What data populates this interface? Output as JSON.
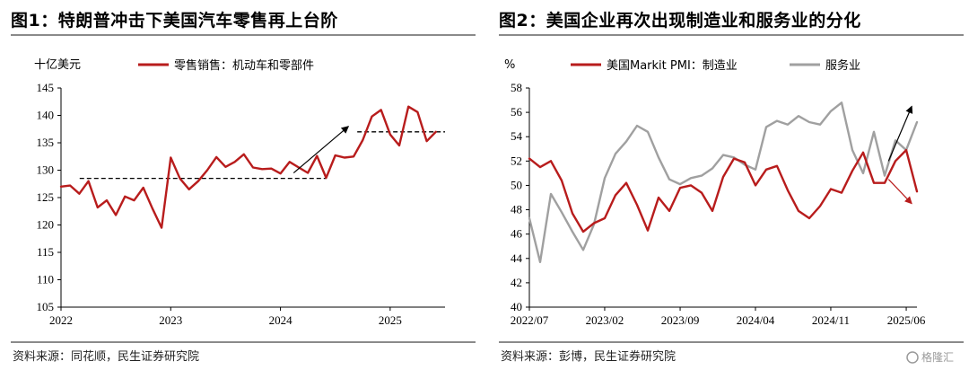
{
  "charts": [
    {
      "title": "图1：特朗普冲击下美国汽车零售再上台阶",
      "source": "资料来源：同花顺，民生证券研究院"
    },
    {
      "title": "图2：美国企业再次出现制造业和服务业的分化",
      "source": "资料来源：彭博，民生证券研究院"
    }
  ],
  "watermark": "格隆汇",
  "colors": {
    "red": "#b81c1c",
    "gray": "#a0a0a0",
    "rule": "#8a8a8a"
  },
  "chart_data": [
    {
      "type": "line",
      "unit_label": "十亿美元",
      "ylim": [
        105,
        145
      ],
      "yticks": [
        105,
        110,
        115,
        120,
        125,
        130,
        135,
        140,
        145
      ],
      "xlim": [
        2022.0,
        2025.5
      ],
      "xticks": [
        {
          "value": 2022.0,
          "label": "2022"
        },
        {
          "value": 2023.0,
          "label": "2023"
        },
        {
          "value": 2024.0,
          "label": "2024"
        },
        {
          "value": 2025.0,
          "label": "2025"
        }
      ],
      "series": [
        {
          "name": "零售销售：机动车和零部件",
          "color": "#b81c1c",
          "start": 2022.0,
          "step_months": 1,
          "values": [
            127.0,
            127.2,
            125.7,
            128.0,
            123.2,
            124.5,
            121.8,
            125.2,
            124.5,
            126.8,
            123.0,
            119.5,
            132.3,
            128.5,
            126.5,
            128.0,
            130.0,
            132.4,
            130.6,
            131.5,
            132.9,
            130.5,
            130.2,
            130.3,
            129.4,
            131.5,
            130.5,
            129.5,
            132.6,
            128.6,
            132.7,
            132.3,
            132.5,
            135.5,
            139.8,
            141.0,
            136.5,
            134.5,
            141.6,
            140.6,
            135.3,
            137.0
          ]
        }
      ],
      "reference_lines": [
        {
          "x": [
            2022.17,
            2024.42
          ],
          "y": 128.5
        },
        {
          "x": [
            2024.7,
            2025.5
          ],
          "y": 137.0
        }
      ],
      "arrows": [
        {
          "from": [
            2024.12,
            129.5
          ],
          "to": [
            2024.62,
            138.0
          ],
          "color": "#000000"
        }
      ]
    },
    {
      "type": "line",
      "unit_label": "%",
      "ylim": [
        40,
        58
      ],
      "yticks": [
        40,
        42,
        44,
        46,
        48,
        50,
        52,
        54,
        56,
        58
      ],
      "xlim": [
        2022.5,
        2025.5
      ],
      "xticks": [
        {
          "value": 2022.5,
          "label": "2022/07"
        },
        {
          "value": 2023.083,
          "label": "2023/02"
        },
        {
          "value": 2023.667,
          "label": "2023/09"
        },
        {
          "value": 2024.25,
          "label": "2024/04"
        },
        {
          "value": 2024.833,
          "label": "2024/11"
        },
        {
          "value": 2025.417,
          "label": "2025/06"
        }
      ],
      "series": [
        {
          "name": "美国Markit PMI：制造业",
          "color": "#b81c1c",
          "start": 2022.5,
          "step_months": 1,
          "values": [
            52.2,
            51.5,
            52.0,
            50.4,
            47.7,
            46.2,
            46.9,
            47.3,
            49.2,
            50.2,
            48.4,
            46.3,
            49.0,
            47.9,
            49.8,
            50.0,
            49.4,
            47.9,
            50.7,
            52.2,
            51.9,
            50.0,
            51.3,
            51.6,
            49.6,
            47.9,
            47.3,
            48.3,
            49.7,
            49.4,
            51.2,
            52.7,
            50.2,
            50.2,
            52.0,
            52.9,
            49.5
          ]
        },
        {
          "name": "服务业",
          "color": "#a0a0a0",
          "start": 2022.5,
          "step_months": 1,
          "values": [
            47.3,
            43.7,
            49.3,
            47.8,
            46.2,
            44.7,
            46.8,
            50.6,
            52.6,
            53.6,
            54.9,
            54.4,
            52.3,
            50.5,
            50.1,
            50.6,
            50.8,
            51.4,
            52.5,
            52.3,
            51.7,
            51.3,
            54.8,
            55.3,
            55.0,
            55.7,
            55.2,
            55.0,
            56.1,
            56.8,
            52.9,
            51.0,
            54.4,
            50.8,
            53.7,
            52.9,
            55.2
          ]
        }
      ],
      "arrows": [
        {
          "from": [
            2025.28,
            52.0
          ],
          "to": [
            2025.46,
            56.5
          ],
          "color": "#000000"
        },
        {
          "from": [
            2025.28,
            50.5
          ],
          "to": [
            2025.46,
            48.5
          ],
          "color": "#b81c1c"
        }
      ]
    }
  ]
}
